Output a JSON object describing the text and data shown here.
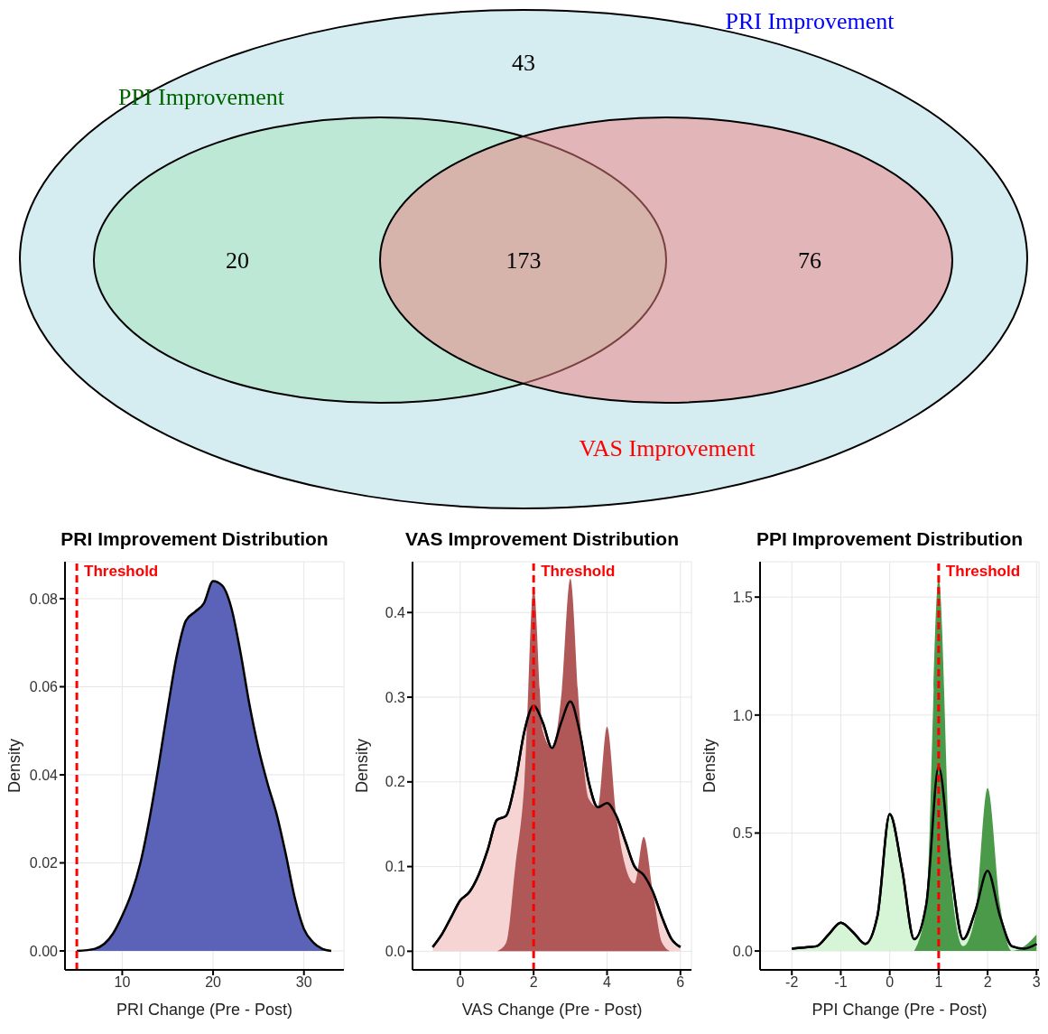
{
  "chart_data": [
    {
      "type": "other",
      "categories": [
        null,
        null,
        null,
        null
      ],
      "values": [
        43,
        20,
        173,
        76
      ],
      "data_labels": true,
      "annotations": [
        "PRI Improvement",
        "PPI Improvement",
        "VAS Improvement"
      ]
    },
    {
      "type": "area",
      "title": "PRI Improvement Distribution",
      "xlabel": "PRI Change (Pre - Post)",
      "ylabel": "Density",
      "x": [
        5,
        7,
        9,
        10,
        11,
        12,
        13,
        14,
        15,
        16,
        17,
        18,
        19,
        20,
        21,
        22,
        23,
        24,
        25,
        26,
        27,
        28,
        29,
        30,
        31,
        32,
        33
      ],
      "series": [
        {
          "type": "area",
          "color": "#5b63b8",
          "values": [
            0,
            0.0005,
            0.004,
            0.008,
            0.013,
            0.02,
            0.03,
            0.042,
            0.055,
            0.067,
            0.075,
            0.077,
            0.079,
            0.084,
            0.083,
            0.078,
            0.068,
            0.056,
            0.046,
            0.038,
            0.031,
            0.022,
            0.012,
            0.005,
            0.002,
            0.0005,
            0
          ]
        }
      ],
      "xlim": [
        3.7,
        34.4
      ],
      "xticks": [
        10,
        20,
        30
      ],
      "ylim": [
        -0.0043,
        0.0884
      ],
      "yticks": [
        {
          "value": 0,
          "label": "0.00"
        },
        {
          "value": 0.02,
          "label": "0.02"
        },
        {
          "value": 0.04,
          "label": "0.04"
        },
        {
          "value": 0.06,
          "label": "0.06"
        },
        {
          "value": 0.08,
          "label": "0.08"
        }
      ],
      "grid": true,
      "ref_lines": [
        {
          "axis": "x",
          "value": 5,
          "label": "Threshold",
          "color": "#ff0000",
          "line_style": "dashed"
        }
      ]
    },
    {
      "type": "area",
      "title": "VAS Improvement Distribution",
      "xlabel": "VAS Change (Pre - Post)",
      "ylabel": "Density",
      "x": [
        -0.75,
        -0.5,
        -0.25,
        0,
        0.25,
        0.5,
        0.75,
        1,
        1.25,
        1.5,
        1.75,
        2,
        2.25,
        2.5,
        2.75,
        3,
        3.25,
        3.5,
        3.75,
        4,
        4.25,
        4.5,
        4.75,
        5,
        5.25,
        5.5,
        5.75,
        6
      ],
      "series": [
        {
          "type": "area",
          "color": "#f7d4d4",
          "values": [
            0.005,
            0.02,
            0.04,
            0.06,
            0.07,
            0.09,
            0.12,
            0.155,
            0.16,
            0.2,
            0.26,
            0.29,
            0.27,
            0.24,
            0.27,
            0.295,
            0.26,
            0.2,
            0.17,
            0.175,
            0.16,
            0.13,
            0.1,
            0.09,
            0.07,
            0.04,
            0.015,
            0.005
          ]
        },
        {
          "type": "area",
          "color": "#b05757",
          "values": [
            null,
            null,
            null,
            null,
            null,
            null,
            null,
            0,
            0.01,
            0.1,
            0.2,
            0.43,
            0.26,
            0.24,
            0.3,
            0.44,
            0.28,
            0.18,
            0.17,
            0.265,
            0.16,
            0.1,
            0.08,
            0.135,
            0.07,
            0.01,
            0,
            0
          ]
        }
      ],
      "xlim": [
        -1.3,
        6.3
      ],
      "xticks": [
        0,
        2,
        4,
        6
      ],
      "ylim": [
        -0.022,
        0.46
      ],
      "yticks": [
        {
          "value": 0,
          "label": "0.0"
        },
        {
          "value": 0.1,
          "label": "0.1"
        },
        {
          "value": 0.2,
          "label": "0.2"
        },
        {
          "value": 0.3,
          "label": "0.3"
        },
        {
          "value": 0.4,
          "label": "0.4"
        }
      ],
      "grid": true,
      "ref_lines": [
        {
          "axis": "x",
          "value": 2,
          "label": "Threshold",
          "color": "#ff0000",
          "line_style": "dashed"
        }
      ]
    },
    {
      "type": "area",
      "title": "PPI Improvement Distribution",
      "xlabel": "PPI Change (Pre - Post)",
      "ylabel": "Density",
      "x": [
        -2,
        -1.75,
        -1.5,
        -1.25,
        -1,
        -0.75,
        -0.5,
        -0.25,
        0,
        0.25,
        0.5,
        0.75,
        1,
        1.25,
        1.5,
        1.75,
        2,
        2.25,
        2.5,
        2.75,
        3
      ],
      "series": [
        {
          "type": "area",
          "color": "#d6f5d6",
          "values": [
            0.01,
            0.015,
            0.02,
            0.07,
            0.12,
            0.08,
            0.03,
            0.15,
            0.58,
            0.35,
            0.05,
            0.2,
            0.78,
            0.35,
            0.05,
            0.17,
            0.34,
            0.15,
            0.02,
            0.01,
            0.03
          ]
        },
        {
          "type": "area",
          "color": "#4a9a4a",
          "values": [
            null,
            null,
            null,
            null,
            null,
            null,
            null,
            null,
            null,
            null,
            0,
            0.2,
            1.58,
            0.3,
            0.02,
            0.15,
            0.69,
            0.2,
            0,
            0.02,
            0.07
          ]
        }
      ],
      "xlim": [
        -2.65,
        3.05
      ],
      "xticks": [
        -2,
        -1,
        0,
        1,
        2,
        3
      ],
      "ylim": [
        -0.08,
        1.65
      ],
      "yticks": [
        {
          "value": 0,
          "label": "0.0"
        },
        {
          "value": 0.5,
          "label": "0.5"
        },
        {
          "value": 1,
          "label": "1.0"
        },
        {
          "value": 1.5,
          "label": "1.5"
        }
      ],
      "grid": true,
      "ref_lines": [
        {
          "axis": "x",
          "value": 1,
          "label": "Threshold",
          "color": "#ff0000",
          "line_style": "dashed"
        }
      ]
    }
  ]
}
